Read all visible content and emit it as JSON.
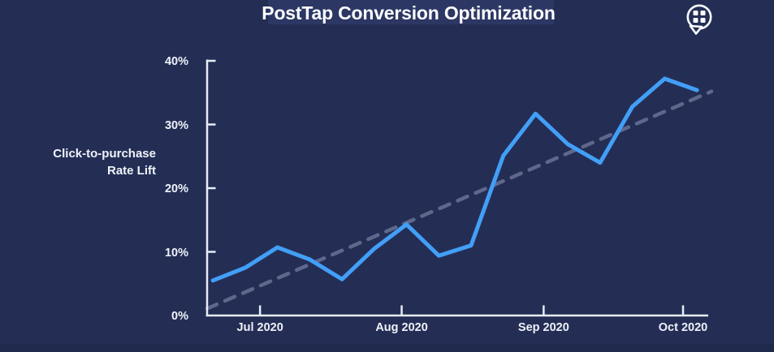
{
  "header": {
    "title": "PostTap Conversion Optimization",
    "brand_icon": "speech-bubble-grid-icon"
  },
  "colors": {
    "background": "#242e55",
    "title_highlight": "#2c3764",
    "axis": "#e8ecf4",
    "tick_text": "#eef2f9",
    "line_blue": "#429ff7",
    "trend_gray": "#5e688d",
    "footer_strip": "#1f294c"
  },
  "chart_data": {
    "type": "line",
    "title": "PostTap Conversion Optimization",
    "xlabel": "",
    "ylabel": "Click-to-purchase Rate Lift",
    "ylabel_lines": [
      "Click-to-purchase",
      "Rate Lift"
    ],
    "grid": false,
    "legend": "none",
    "ylim": [
      0,
      40
    ],
    "xlim": [
      -0.18,
      15.35
    ],
    "x_unit": "weeks (index), Jun 2020 - Oct 2020",
    "y_ticks": [
      {
        "label": "0%",
        "value": 0
      },
      {
        "label": "10%",
        "value": 10
      },
      {
        "label": "20%",
        "value": 20
      },
      {
        "label": "30%",
        "value": 30
      },
      {
        "label": "40%",
        "value": 40
      }
    ],
    "x_ticks": [
      {
        "label": "Jul 2020",
        "x": 1.46
      },
      {
        "label": "Aug 2020",
        "x": 5.85
      },
      {
        "label": "Sep 2020",
        "x": 10.25
      },
      {
        "label": "Oct 2020",
        "x": 14.57
      }
    ],
    "series": [
      {
        "name": "trendline",
        "style": "dashed",
        "color": "#5e688d",
        "width": 4.5,
        "dash": "13 11",
        "points": [
          [
            -0.18,
            1.1
          ],
          [
            15.45,
            35.2
          ]
        ]
      },
      {
        "name": "click_to_purchase_rate_lift",
        "style": "solid",
        "color": "#429ff7",
        "width": 5,
        "values": [
          5.5,
          7.5,
          10.7,
          8.8,
          5.7,
          10.5,
          14.3,
          9.4,
          11.0,
          25.1,
          31.7,
          26.9,
          24.0,
          32.8,
          37.2,
          35.4
        ]
      }
    ]
  }
}
